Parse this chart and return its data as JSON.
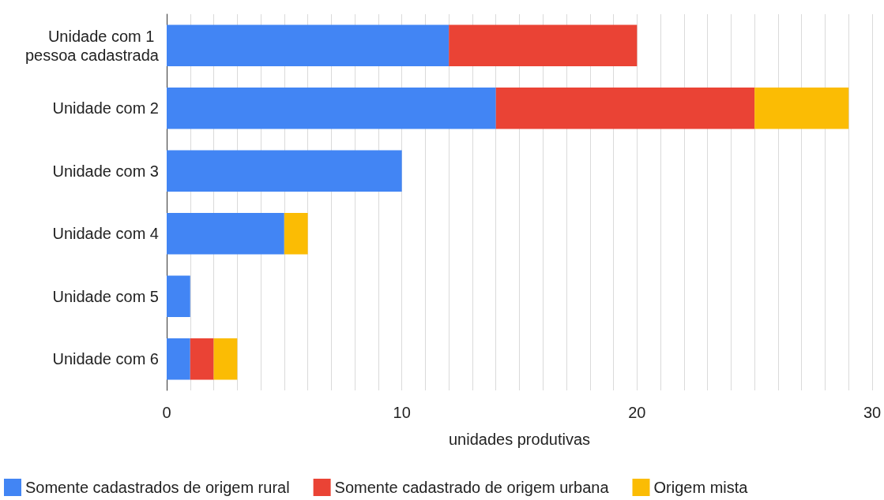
{
  "chart_data": {
    "type": "bar",
    "orientation": "horizontal",
    "stacked": true,
    "xlabel": "unidades produtivas",
    "categories": [
      "Unidade com 1 pessoa cadastrada",
      "Unidade com 2",
      "Unidade com 3",
      "Unidade com 4",
      "Unidade com 5",
      "Unidade com 6"
    ],
    "series": [
      {
        "name": "Somente cadastrados de origem rural",
        "color": "#4285f4",
        "values": [
          12,
          14,
          10,
          5,
          1,
          1
        ]
      },
      {
        "name": "Somente cadastrado de origem urbana",
        "color": "#ea4335",
        "values": [
          8,
          11,
          0,
          0,
          0,
          1
        ]
      },
      {
        "name": "Origem mista",
        "color": "#fbbc04",
        "values": [
          0,
          4,
          0,
          1,
          0,
          1
        ]
      }
    ],
    "xlim": [
      0,
      30
    ],
    "xticks": [
      0,
      {
        "value": 1,
        "label": null
      },
      {
        "value": 2,
        "label": null
      },
      {
        "value": 3,
        "label": null
      },
      {
        "value": 4,
        "label": null
      },
      {
        "value": 5,
        "label": null
      },
      {
        "value": 6,
        "label": null
      },
      {
        "value": 7,
        "label": null
      },
      {
        "value": 8,
        "label": null
      },
      {
        "value": 9,
        "label": null
      },
      10,
      {
        "value": 11,
        "label": null
      },
      {
        "value": 12,
        "label": null
      },
      {
        "value": 13,
        "label": null
      },
      {
        "value": 14,
        "label": null
      },
      {
        "value": 15,
        "label": null
      },
      {
        "value": 16,
        "label": null
      },
      {
        "value": 17,
        "label": null
      },
      {
        "value": 18,
        "label": null
      },
      {
        "value": 19,
        "label": null
      },
      20,
      {
        "value": 21,
        "label": null
      },
      {
        "value": 22,
        "label": null
      },
      {
        "value": 23,
        "label": null
      },
      {
        "value": 24,
        "label": null
      },
      {
        "value": 25,
        "label": null
      },
      {
        "value": 26,
        "label": null
      },
      {
        "value": 27,
        "label": null
      },
      {
        "value": 28,
        "label": null
      },
      {
        "value": 29,
        "label": null
      },
      30
    ],
    "grid": "x",
    "legend": "bottom"
  }
}
